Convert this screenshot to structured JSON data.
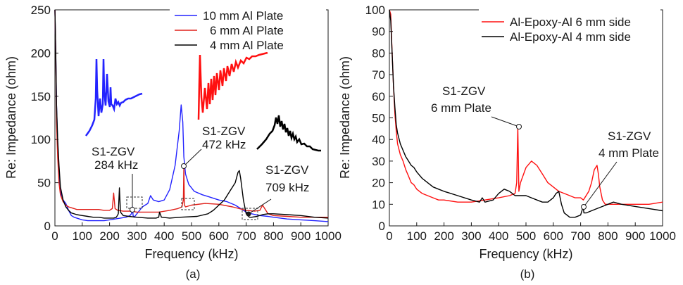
{
  "chart_data": [
    {
      "type": "line",
      "panel_label": "(a)",
      "xlabel": "Frequency (kHz)",
      "ylabel": "Re: Impedance (ohm)",
      "xlim": [
        0,
        1000
      ],
      "ylim": [
        0,
        250
      ],
      "xticks": [
        0,
        100,
        200,
        300,
        400,
        500,
        600,
        700,
        800,
        900,
        1000
      ],
      "yticks": [
        0,
        50,
        100,
        150,
        200,
        250
      ],
      "legend_position": "top-right",
      "series": [
        {
          "name": "10 mm Al Plate",
          "color": "#2323ff",
          "x": [
            0,
            3,
            6,
            10,
            15,
            20,
            30,
            40,
            50,
            60,
            70,
            80,
            90,
            100,
            120,
            140,
            160,
            180,
            200,
            220,
            240,
            260,
            275,
            280,
            284,
            286,
            290,
            300,
            320,
            340,
            350,
            360,
            380,
            400,
            420,
            440,
            455,
            462,
            468,
            472,
            478,
            490,
            510,
            540,
            560,
            580,
            600,
            630,
            660,
            680,
            700,
            720,
            750,
            780,
            800,
            850,
            900,
            950,
            1000
          ],
          "y": [
            250,
            200,
            140,
            95,
            60,
            40,
            30,
            26,
            18,
            12,
            10,
            9,
            8,
            7,
            6,
            6,
            6,
            6,
            7,
            8,
            9,
            10,
            12,
            14,
            22,
            12,
            10,
            14,
            22,
            26,
            35,
            30,
            28,
            30,
            42,
            70,
            110,
            140,
            120,
            80,
            60,
            48,
            40,
            36,
            34,
            32,
            30,
            28,
            24,
            20,
            16,
            14,
            12,
            11,
            10,
            8,
            7,
            6,
            5
          ]
        },
        {
          "name": "6 mm Al Plate",
          "color": "#e0201a",
          "x": [
            0,
            3,
            6,
            10,
            15,
            20,
            30,
            40,
            50,
            60,
            70,
            80,
            100,
            120,
            140,
            160,
            180,
            200,
            210,
            215,
            220,
            230,
            250,
            280,
            300,
            340,
            380,
            420,
            450,
            465,
            470,
            472,
            474,
            478,
            500,
            550,
            600,
            650,
            700,
            730,
            750,
            760,
            780,
            800,
            850,
            900,
            950,
            1000
          ],
          "y": [
            250,
            200,
            120,
            80,
            50,
            36,
            28,
            24,
            22,
            21,
            20,
            19,
            19,
            19,
            19,
            19,
            18,
            18,
            20,
            38,
            20,
            18,
            17,
            17,
            16,
            16,
            16,
            18,
            20,
            22,
            30,
            68,
            24,
            22,
            24,
            26,
            25,
            22,
            18,
            17,
            18,
            24,
            14,
            12,
            11,
            10,
            10,
            10
          ]
        },
        {
          "name": "4 mm Al Plate",
          "color": "#000000",
          "x": [
            0,
            3,
            6,
            10,
            15,
            20,
            30,
            40,
            50,
            60,
            80,
            100,
            120,
            140,
            160,
            180,
            200,
            215,
            225,
            232,
            236,
            240,
            250,
            270,
            300,
            340,
            370,
            380,
            383,
            390,
            420,
            460,
            520,
            560,
            580,
            600,
            620,
            640,
            660,
            670,
            675,
            680,
            690,
            700,
            705,
            709,
            712,
            720,
            740,
            760,
            780,
            800,
            850,
            900,
            950,
            1000
          ],
          "y": [
            250,
            200,
            140,
            100,
            70,
            45,
            30,
            22,
            18,
            15,
            13,
            12,
            11,
            10,
            10,
            9,
            9,
            9,
            10,
            14,
            44,
            16,
            12,
            11,
            10,
            9,
            9,
            10,
            16,
            10,
            9,
            10,
            11,
            14,
            18,
            24,
            30,
            40,
            50,
            62,
            64,
            55,
            30,
            14,
            12,
            11,
            10,
            10,
            11,
            13,
            14,
            14,
            13,
            12,
            10,
            9
          ]
        }
      ],
      "annotations": [
        {
          "lines": [
            "S1-ZGV",
            "284 kHz"
          ],
          "x": 284,
          "y": 37
        },
        {
          "lines": [
            "S1-ZGV",
            "472 kHz"
          ],
          "x": 472,
          "y": 68
        },
        {
          "lines": [
            "S1-ZGV",
            "709 kHz"
          ],
          "x": 709,
          "y": 12
        }
      ]
    },
    {
      "type": "line",
      "panel_label": "(b)",
      "xlabel": "Frequency (kHz)",
      "ylabel": "Re: Impedance (ohm)",
      "xlim": [
        0,
        1000
      ],
      "ylim": [
        0,
        100
      ],
      "xticks": [
        0,
        100,
        200,
        300,
        400,
        500,
        600,
        700,
        800,
        900,
        1000
      ],
      "yticks": [
        0,
        10,
        20,
        30,
        40,
        50,
        60,
        70,
        80,
        90,
        100
      ],
      "legend_position": "top-right",
      "series": [
        {
          "name": "Al-Epoxy-Al 6 mm side",
          "color": "#ff1010",
          "x": [
            0,
            5,
            10,
            15,
            20,
            25,
            30,
            40,
            50,
            60,
            70,
            80,
            90,
            100,
            120,
            140,
            160,
            180,
            200,
            250,
            300,
            350,
            400,
            440,
            460,
            466,
            470,
            474,
            480,
            500,
            520,
            540,
            560,
            580,
            600,
            620,
            640,
            660,
            680,
            700,
            710,
            720,
            730,
            740,
            750,
            760,
            765,
            770,
            780,
            790,
            800,
            820,
            850,
            900,
            950,
            1000
          ],
          "y": [
            100,
            98,
            80,
            65,
            52,
            44,
            38,
            33,
            30,
            26,
            23,
            20,
            19,
            17,
            15,
            14,
            13,
            12,
            12,
            11,
            11,
            12,
            13,
            14,
            15,
            20,
            46,
            16,
            20,
            27,
            30,
            28,
            24,
            20,
            18,
            16,
            15,
            14,
            13,
            13,
            12,
            14,
            16,
            20,
            26,
            28,
            24,
            18,
            12,
            10,
            10,
            10,
            10,
            10,
            10,
            11
          ]
        },
        {
          "name": "Al-Epoxy-Al 4 mm side",
          "color": "#000000",
          "x": [
            0,
            5,
            10,
            15,
            20,
            25,
            30,
            40,
            50,
            60,
            70,
            80,
            90,
            100,
            120,
            140,
            160,
            180,
            200,
            250,
            300,
            330,
            340,
            350,
            380,
            400,
            420,
            440,
            460,
            480,
            500,
            520,
            540,
            560,
            580,
            600,
            610,
            620,
            630,
            640,
            660,
            680,
            700,
            705,
            709,
            712,
            720,
            740,
            760,
            780,
            800,
            820,
            850,
            900,
            950,
            1000
          ],
          "y": [
            100,
            95,
            80,
            65,
            55,
            47,
            43,
            38,
            35,
            32,
            30,
            28,
            27,
            25,
            22,
            20,
            18,
            17,
            16,
            14,
            12,
            11,
            13,
            11,
            12,
            15,
            17,
            16,
            14,
            14,
            14,
            13,
            12,
            11,
            11,
            13,
            15,
            16,
            10,
            6,
            4,
            4,
            5,
            7,
            9,
            6,
            6,
            7,
            8,
            9,
            10,
            11,
            10,
            9,
            8,
            7
          ]
        }
      ],
      "annotations": [
        {
          "lines": [
            "S1-ZGV",
            "6 mm Plate"
          ],
          "x": 470,
          "y": 46
        },
        {
          "lines": [
            "S1-ZGV",
            "4 mm Plate"
          ],
          "x": 709,
          "y": 9
        }
      ]
    }
  ]
}
